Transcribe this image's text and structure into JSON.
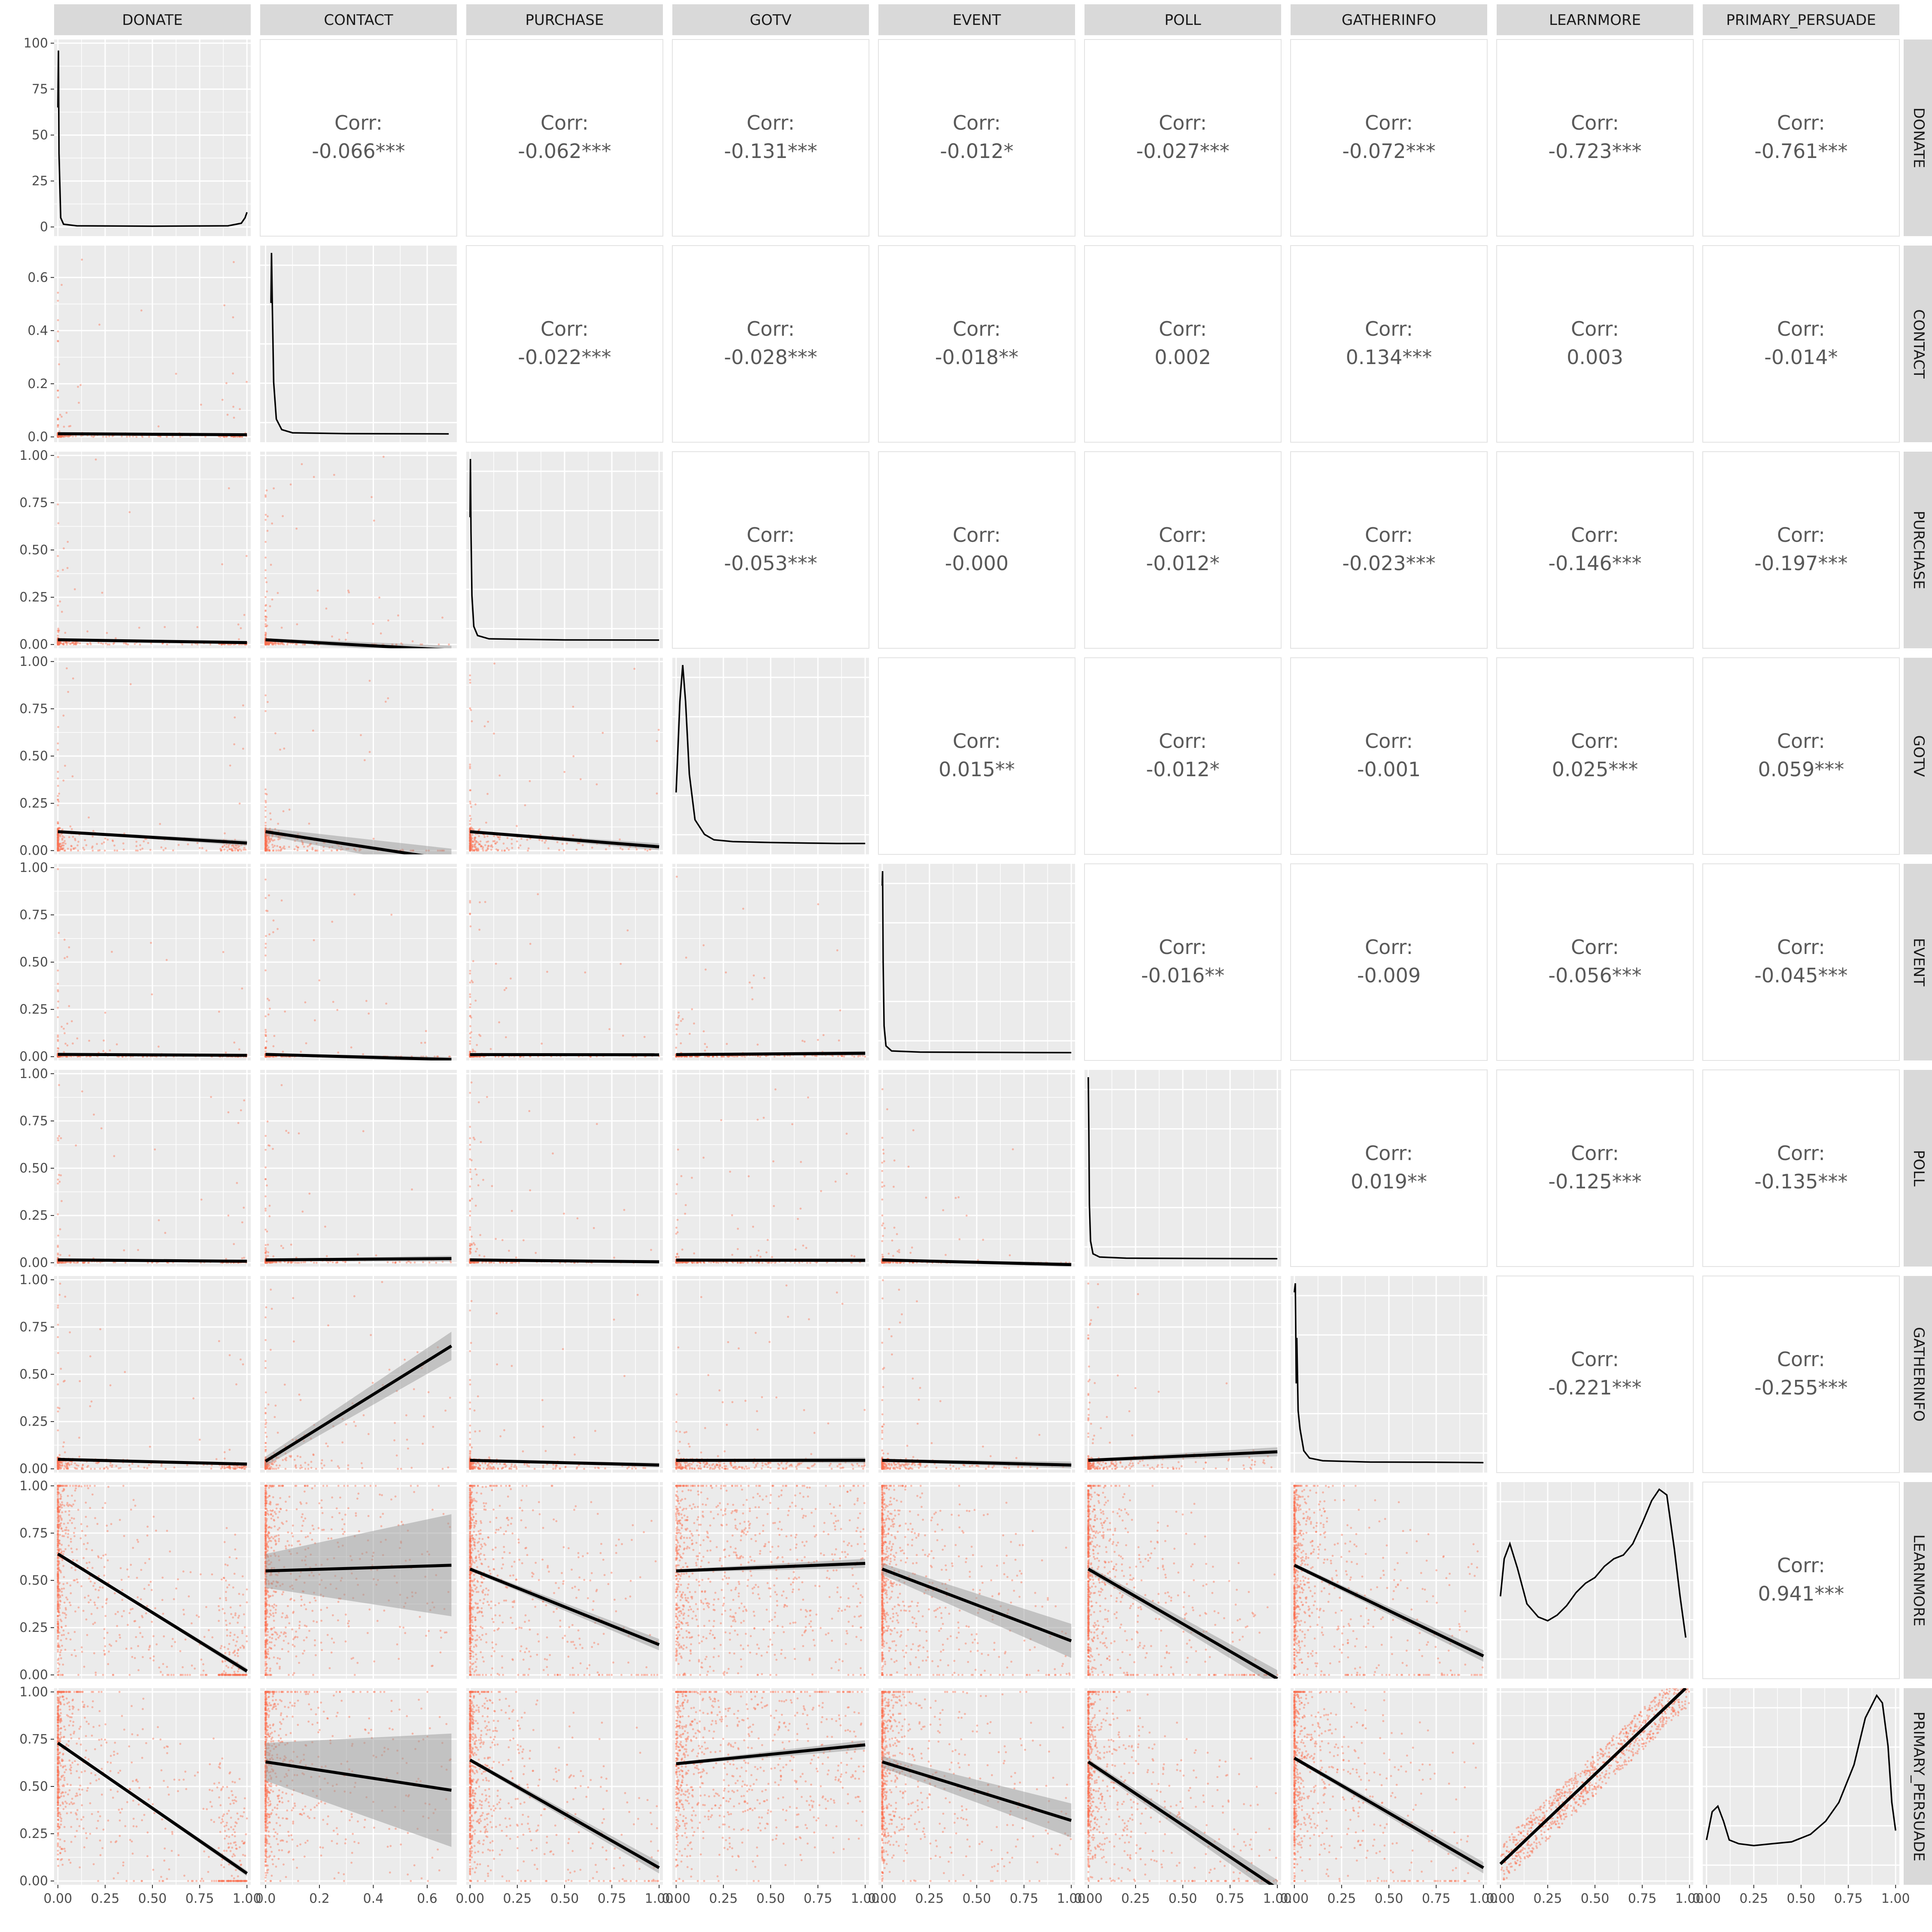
{
  "chart_data": {
    "type": "scatter-matrix",
    "title": "",
    "variables": [
      "DONATE",
      "CONTACT",
      "PURCHASE",
      "GOTV",
      "EVENT",
      "POLL",
      "GATHERINFO",
      "LEARNMORE",
      "PRIMARY_PERSUADE"
    ],
    "corr_prefix": "Corr:",
    "correlations": [
      [
        "",
        "-0.066***",
        "-0.062***",
        "-0.131***",
        "-0.012*",
        "-0.027***",
        "-0.072***",
        "-0.723***",
        "-0.761***"
      ],
      [
        "",
        "",
        "-0.022***",
        "-0.028***",
        "-0.018**",
        "0.002",
        "0.134***",
        "0.003",
        "-0.014*"
      ],
      [
        "",
        "",
        "",
        "-0.053***",
        "-0.000",
        "-0.012*",
        "-0.023***",
        "-0.146***",
        "-0.197***"
      ],
      [
        "",
        "",
        "",
        "",
        "0.015**",
        "-0.012*",
        "-0.001",
        "0.025***",
        "0.059***"
      ],
      [
        "",
        "",
        "",
        "",
        "",
        "-0.016**",
        "-0.009",
        "-0.056***",
        "-0.045***"
      ],
      [
        "",
        "",
        "",
        "",
        "",
        "",
        "0.019**",
        "-0.125***",
        "-0.135***"
      ],
      [
        "",
        "",
        "",
        "",
        "",
        "",
        "",
        "-0.221***",
        "-0.255***"
      ],
      [
        "",
        "",
        "",
        "",
        "",
        "",
        "",
        "",
        "0.941***"
      ],
      [
        "",
        "",
        "",
        "",
        "",
        "",
        "",
        "",
        ""
      ]
    ],
    "x_ticks": [
      [
        "0.00",
        "0.25",
        "0.50",
        "0.75",
        "1.00"
      ],
      [
        "0.0",
        "0.2",
        "0.4",
        "0.6"
      ],
      [
        "0.00",
        "0.25",
        "0.50",
        "0.75",
        "1.00"
      ],
      [
        "0.00",
        "0.25",
        "0.50",
        "0.75",
        "1.00"
      ],
      [
        "0.00",
        "0.25",
        "0.50",
        "0.75",
        "1.00"
      ],
      [
        "0.00",
        "0.25",
        "0.50",
        "0.75",
        "1.00"
      ],
      [
        "0.00",
        "0.25",
        "0.50",
        "0.75",
        "1.00"
      ],
      [
        "0.00",
        "0.25",
        "0.50",
        "0.75",
        "1.00"
      ],
      [
        "0.00",
        "0.25",
        "0.50",
        "0.75",
        "1.00"
      ]
    ],
    "x_tick_values": [
      [
        0,
        0.25,
        0.5,
        0.75,
        1
      ],
      [
        0,
        0.2,
        0.4,
        0.6
      ],
      [
        0,
        0.25,
        0.5,
        0.75,
        1
      ],
      [
        0,
        0.25,
        0.5,
        0.75,
        1
      ],
      [
        0,
        0.25,
        0.5,
        0.75,
        1
      ],
      [
        0,
        0.25,
        0.5,
        0.75,
        1
      ],
      [
        0,
        0.25,
        0.5,
        0.75,
        1
      ],
      [
        0,
        0.25,
        0.5,
        0.75,
        1
      ],
      [
        0,
        0.25,
        0.5,
        0.75,
        1
      ]
    ],
    "x_ranges": [
      [
        -0.02,
        1.02
      ],
      [
        -0.02,
        0.71
      ],
      [
        -0.02,
        1.02
      ],
      [
        -0.02,
        1.02
      ],
      [
        -0.02,
        1.02
      ],
      [
        -0.02,
        1.02
      ],
      [
        -0.02,
        1.02
      ],
      [
        -0.02,
        1.02
      ],
      [
        -0.02,
        1.02
      ]
    ],
    "y_ticks": [
      [
        "0",
        "25",
        "50",
        "75",
        "100"
      ],
      [
        "0.0",
        "0.2",
        "0.4",
        "0.6"
      ],
      [
        "0.00",
        "0.25",
        "0.50",
        "0.75",
        "1.00"
      ],
      [
        "0.00",
        "0.25",
        "0.50",
        "0.75",
        "1.00"
      ],
      [
        "0.00",
        "0.25",
        "0.50",
        "0.75",
        "1.00"
      ],
      [
        "0.00",
        "0.25",
        "0.50",
        "0.75",
        "1.00"
      ],
      [
        "0.00",
        "0.25",
        "0.50",
        "0.75",
        "1.00"
      ],
      [
        "0.00",
        "0.25",
        "0.50",
        "0.75",
        "1.00"
      ],
      [
        "0.00",
        "0.25",
        "0.50",
        "0.75",
        "1.00"
      ]
    ],
    "y_tick_values": [
      [
        0,
        25,
        50,
        75,
        100
      ],
      [
        0,
        0.2,
        0.4,
        0.6
      ],
      [
        0,
        0.25,
        0.5,
        0.75,
        1
      ],
      [
        0,
        0.25,
        0.5,
        0.75,
        1
      ],
      [
        0,
        0.25,
        0.5,
        0.75,
        1
      ],
      [
        0,
        0.25,
        0.5,
        0.75,
        1
      ],
      [
        0,
        0.25,
        0.5,
        0.75,
        1
      ],
      [
        0,
        0.25,
        0.5,
        0.75,
        1
      ],
      [
        0,
        0.25,
        0.5,
        0.75,
        1
      ]
    ],
    "y_ranges": [
      [
        -5,
        102
      ],
      [
        -0.02,
        0.72
      ],
      [
        -0.02,
        1.02
      ],
      [
        -0.02,
        1.02
      ],
      [
        -0.02,
        1.02
      ],
      [
        -0.02,
        1.02
      ],
      [
        -0.02,
        1.02
      ],
      [
        -0.02,
        1.02
      ],
      [
        -0.02,
        1.02
      ]
    ],
    "densities": [
      [
        [
          0.0,
          65
        ],
        [
          0.003,
          96
        ],
        [
          0.006,
          40
        ],
        [
          0.015,
          5
        ],
        [
          0.03,
          1.5
        ],
        [
          0.1,
          0.6
        ],
        [
          0.5,
          0.4
        ],
        [
          0.9,
          0.6
        ],
        [
          0.97,
          2
        ],
        [
          0.99,
          5
        ],
        [
          1.0,
          8
        ]
      ],
      [
        [
          0.02,
          0.5
        ],
        [
          0.022,
          0.69
        ],
        [
          0.025,
          0.5
        ],
        [
          0.03,
          0.2
        ],
        [
          0.04,
          0.06
        ],
        [
          0.06,
          0.02
        ],
        [
          0.1,
          0.008
        ],
        [
          0.3,
          0.005
        ],
        [
          0.68,
          0.004
        ]
      ],
      [
        [
          0.0,
          0.68
        ],
        [
          0.002,
          1.0
        ],
        [
          0.005,
          0.6
        ],
        [
          0.01,
          0.25
        ],
        [
          0.02,
          0.08
        ],
        [
          0.04,
          0.03
        ],
        [
          0.1,
          0.012
        ],
        [
          0.5,
          0.006
        ],
        [
          1.0,
          0.005
        ]
      ],
      [
        [
          0.0,
          0.3
        ],
        [
          0.02,
          0.8
        ],
        [
          0.035,
          1.0
        ],
        [
          0.05,
          0.8
        ],
        [
          0.07,
          0.4
        ],
        [
          0.1,
          0.15
        ],
        [
          0.15,
          0.07
        ],
        [
          0.2,
          0.04
        ],
        [
          0.3,
          0.03
        ],
        [
          0.5,
          0.025
        ],
        [
          0.7,
          0.022
        ],
        [
          0.85,
          0.02
        ],
        [
          1.0,
          0.02
        ]
      ],
      [
        [
          0.0,
          0.92
        ],
        [
          0.002,
          1.0
        ],
        [
          0.005,
          0.5
        ],
        [
          0.01,
          0.15
        ],
        [
          0.02,
          0.04
        ],
        [
          0.05,
          0.012
        ],
        [
          0.2,
          0.006
        ],
        [
          0.6,
          0.004
        ],
        [
          1.0,
          0.003
        ]
      ],
      [
        [
          0.0,
          1.0
        ],
        [
          0.003,
          0.7
        ],
        [
          0.006,
          0.3
        ],
        [
          0.012,
          0.1
        ],
        [
          0.025,
          0.03
        ],
        [
          0.06,
          0.012
        ],
        [
          0.2,
          0.006
        ],
        [
          0.6,
          0.004
        ],
        [
          1.0,
          0.003
        ]
      ],
      [
        [
          0.0,
          0.95
        ],
        [
          0.005,
          1.0
        ],
        [
          0.01,
          0.45
        ],
        [
          0.013,
          0.7
        ],
        [
          0.02,
          0.3
        ],
        [
          0.03,
          0.2
        ],
        [
          0.05,
          0.08
        ],
        [
          0.08,
          0.04
        ],
        [
          0.15,
          0.025
        ],
        [
          0.4,
          0.018
        ],
        [
          0.7,
          0.017
        ],
        [
          1.0,
          0.015
        ]
      ],
      [
        [
          0.0,
          0.4
        ],
        [
          0.02,
          0.6
        ],
        [
          0.05,
          0.68
        ],
        [
          0.09,
          0.55
        ],
        [
          0.14,
          0.36
        ],
        [
          0.2,
          0.29
        ],
        [
          0.25,
          0.27
        ],
        [
          0.3,
          0.3
        ],
        [
          0.35,
          0.35
        ],
        [
          0.4,
          0.42
        ],
        [
          0.45,
          0.47
        ],
        [
          0.5,
          0.5
        ],
        [
          0.55,
          0.56
        ],
        [
          0.6,
          0.6
        ],
        [
          0.65,
          0.62
        ],
        [
          0.7,
          0.68
        ],
        [
          0.75,
          0.79
        ],
        [
          0.8,
          0.91
        ],
        [
          0.84,
          0.97
        ],
        [
          0.88,
          0.94
        ],
        [
          0.92,
          0.65
        ],
        [
          0.95,
          0.4
        ],
        [
          0.98,
          0.18
        ]
      ],
      [
        [
          0.0,
          0.2
        ],
        [
          0.03,
          0.35
        ],
        [
          0.06,
          0.38
        ],
        [
          0.09,
          0.3
        ],
        [
          0.12,
          0.2
        ],
        [
          0.17,
          0.18
        ],
        [
          0.25,
          0.17
        ],
        [
          0.35,
          0.18
        ],
        [
          0.45,
          0.19
        ],
        [
          0.55,
          0.23
        ],
        [
          0.63,
          0.3
        ],
        [
          0.7,
          0.4
        ],
        [
          0.78,
          0.6
        ],
        [
          0.84,
          0.85
        ],
        [
          0.9,
          0.97
        ],
        [
          0.93,
          0.93
        ],
        [
          0.96,
          0.7
        ],
        [
          0.98,
          0.4
        ],
        [
          1.0,
          0.25
        ]
      ]
    ],
    "regressions": [
      [
        null,
        null,
        null,
        null,
        null,
        null,
        null,
        null,
        null
      ],
      [
        [
          0,
          0.012,
          1,
          0.008,
          0.001
        ],
        null,
        null,
        null,
        null,
        null,
        null,
        null,
        null
      ],
      [
        [
          0,
          0.025,
          1,
          0.01,
          0.003
        ],
        [
          0,
          0.025,
          0.69,
          -0.03,
          0.008
        ],
        null,
        null,
        null,
        null,
        null,
        null,
        null
      ],
      [
        [
          0,
          0.1,
          1,
          0.04,
          0.005
        ],
        [
          0,
          0.1,
          0.69,
          -0.05,
          0.02
        ],
        [
          0,
          0.1,
          1,
          0.02,
          0.006
        ],
        null,
        null,
        null,
        null,
        null,
        null
      ],
      [
        [
          0,
          0.012,
          1,
          0.007,
          0.002
        ],
        [
          0,
          0.012,
          0.69,
          -0.015,
          0.005
        ],
        [
          0,
          0.011,
          1,
          0.01,
          0.003
        ],
        [
          0,
          0.011,
          1,
          0.018,
          0.004
        ],
        null,
        null,
        null,
        null,
        null
      ],
      [
        [
          0,
          0.015,
          1,
          0.008,
          0.002
        ],
        [
          0,
          0.015,
          0.69,
          0.022,
          0.005
        ],
        [
          0,
          0.015,
          1,
          0.005,
          0.003
        ],
        [
          0,
          0.014,
          1,
          0.013,
          0.004
        ],
        [
          0,
          0.015,
          1,
          -0.01,
          0.004
        ],
        null,
        null,
        null,
        null
      ],
      [
        [
          0,
          0.05,
          1,
          0.025,
          0.003
        ],
        [
          0,
          0.04,
          0.69,
          0.65,
          0.025
        ],
        [
          0,
          0.045,
          1,
          0.02,
          0.004
        ],
        [
          0,
          0.045,
          1,
          0.045,
          0.005
        ],
        [
          0,
          0.045,
          1,
          0.02,
          0.006
        ],
        [
          0,
          0.045,
          1,
          0.09,
          0.008
        ],
        null,
        null,
        null
      ],
      [
        [
          0,
          0.64,
          1,
          0.02,
          0.005
        ],
        [
          0,
          0.55,
          0.69,
          0.58,
          0.09
        ],
        [
          0,
          0.56,
          1,
          0.16,
          0.01
        ],
        [
          0,
          0.55,
          1,
          0.59,
          0.008
        ],
        [
          0,
          0.56,
          1,
          0.18,
          0.03
        ],
        [
          0,
          0.56,
          1,
          -0.02,
          0.015
        ],
        [
          0,
          0.58,
          1,
          0.1,
          0.01
        ],
        null,
        null
      ],
      [
        [
          0,
          0.73,
          1,
          0.04,
          0.005
        ],
        [
          0,
          0.63,
          0.69,
          0.48,
          0.1
        ],
        [
          0,
          0.64,
          1,
          0.07,
          0.01
        ],
        [
          0,
          0.62,
          1,
          0.72,
          0.008
        ],
        [
          0,
          0.63,
          1,
          0.32,
          0.03
        ],
        [
          0,
          0.63,
          1,
          -0.04,
          0.015
        ],
        [
          0,
          0.65,
          1,
          0.07,
          0.01
        ],
        [
          0,
          0.09,
          0.98,
          1.02,
          0.004
        ],
        null
      ]
    ],
    "point_color": "#fa7152",
    "line_color": "#000000",
    "ribbon_color": "#999999",
    "panel_bg": "#ebebeb",
    "strip_bg": "#d9d9d9",
    "grid_color": "#ffffff"
  }
}
